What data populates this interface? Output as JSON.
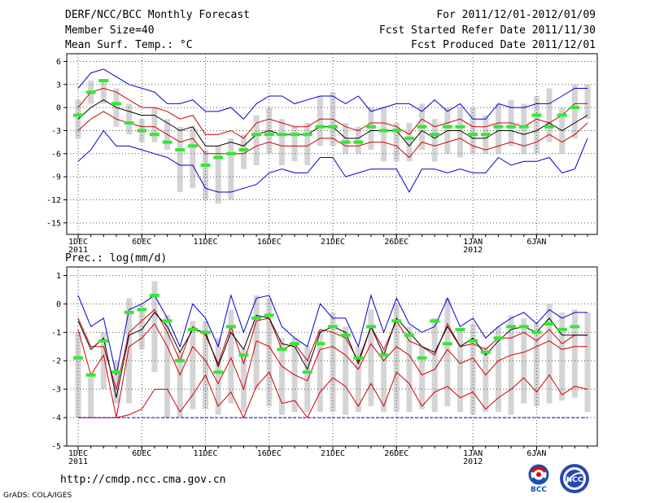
{
  "header": {
    "title": "DERF/NCC/BCC Monthly Forecast",
    "member_size": "Member Size=40",
    "for_range": "For 2011/12/01-2012/01/09",
    "started": "Fcst Started Refer Date 2011/11/30",
    "produced": "Fcst Produced Date 2011/12/01"
  },
  "footer": {
    "url": "http://cmdp.ncc.cma.gov.cn",
    "credit": "GrADS: COLA/IGES",
    "logo_bcc": "BCC",
    "logo_ncc": "NCC"
  },
  "colors": {
    "spread": "#d4d4d6",
    "green": "#33e833",
    "blue": "#0000d0",
    "red": "#d00000",
    "mean": "#000000",
    "grid": "#555555"
  },
  "chart_data": [
    {
      "type": "line",
      "title": "Mean Surf. Temp.: °C",
      "ylabel": "°C",
      "ylim": [
        -16.5,
        7
      ],
      "yticks": [
        6,
        3,
        0,
        -3,
        -6,
        -9,
        -12,
        -15
      ],
      "xtick_labels": [
        {
          "day": 0,
          "label": "1DEC",
          "sub": "2011"
        },
        {
          "day": 5,
          "label": "6DEC",
          "sub": ""
        },
        {
          "day": 10,
          "label": "11DEC",
          "sub": ""
        },
        {
          "day": 15,
          "label": "16DEC",
          "sub": ""
        },
        {
          "day": 20,
          "label": "21DEC",
          "sub": ""
        },
        {
          "day": 25,
          "label": "26DEC",
          "sub": ""
        },
        {
          "day": 31,
          "label": "1JAN",
          "sub": "2012"
        },
        {
          "day": 36,
          "label": "6JAN",
          "sub": ""
        }
      ],
      "x_days": 40,
      "series": [
        {
          "name": "max",
          "color": "blue",
          "values": [
            2.5,
            4.5,
            5,
            4,
            3,
            2.5,
            2,
            0.5,
            0.5,
            1,
            -0.5,
            -0.5,
            0,
            -1.5,
            0.5,
            1.5,
            1.5,
            0.5,
            1,
            1.5,
            1.5,
            0.5,
            1.5,
            -0.5,
            0,
            0.5,
            0.5,
            -0.5,
            1,
            -0.5,
            0.5,
            -1.5,
            -1.5,
            0.5,
            0,
            0,
            0.5,
            0.5,
            1.5,
            2.5,
            2.5
          ]
        },
        {
          "name": "upper",
          "color": "red",
          "values": [
            0,
            2,
            2.5,
            2,
            1,
            0,
            0,
            -0.5,
            -1.5,
            -1,
            -3.5,
            -3.5,
            -3,
            -4,
            -2,
            -1.5,
            -2,
            -2.5,
            -2.5,
            -1.5,
            -1.5,
            -2.5,
            -3,
            -2,
            -2,
            -2.5,
            -3.5,
            -1.5,
            -2.5,
            -2,
            -1.5,
            -2.5,
            -2.5,
            -2,
            -2,
            -2.5,
            -1.5,
            -2,
            -1,
            0.5,
            0.5
          ]
        },
        {
          "name": "mean",
          "color": "mean",
          "values": [
            -1.5,
            0,
            1,
            0,
            -0.5,
            -1,
            -1,
            -2,
            -3,
            -2.5,
            -5,
            -5,
            -4.5,
            -5,
            -3.5,
            -3,
            -3.5,
            -3.5,
            -3.5,
            -2.5,
            -2.5,
            -4,
            -4,
            -3,
            -3,
            -3,
            -5,
            -3,
            -4,
            -3,
            -3,
            -4,
            -4,
            -3,
            -3,
            -3.5,
            -3,
            -2,
            -3,
            -2,
            -1
          ]
        },
        {
          "name": "lower",
          "color": "red",
          "values": [
            -3,
            -1.5,
            -0.5,
            -1.5,
            -2,
            -2.5,
            -2.5,
            -3.5,
            -4.5,
            -4,
            -6,
            -6,
            -6,
            -6,
            -5,
            -4.5,
            -5,
            -5,
            -5,
            -4,
            -4,
            -5,
            -5,
            -4.5,
            -4.5,
            -5,
            -6.5,
            -4.5,
            -5,
            -4.5,
            -4,
            -5,
            -5.5,
            -5,
            -4.5,
            -5,
            -4.5,
            -3.5,
            -4.5,
            -3.5,
            -2
          ]
        },
        {
          "name": "min",
          "color": "blue",
          "values": [
            -7,
            -5.5,
            -3,
            -5,
            -5,
            -5.5,
            -6,
            -6.5,
            -7.5,
            -7.5,
            -10.5,
            -11,
            -11,
            -10.5,
            -10,
            -8.5,
            -8,
            -8.5,
            -8.5,
            -6.5,
            -6.5,
            -9,
            -8.5,
            -8,
            -8,
            -8,
            -11,
            -8,
            -8,
            -8.5,
            -8,
            -8.5,
            -8.5,
            -6.5,
            -7.5,
            -7,
            -7,
            -6.5,
            -8.5,
            -8,
            -4
          ]
        }
      ],
      "spread_bars": [
        [
          -4,
          1
        ],
        [
          0.5,
          3.5
        ],
        [
          0.5,
          3.5
        ],
        [
          -2.5,
          2.5
        ],
        [
          -3.5,
          0.5
        ],
        [
          -4.5,
          -1.5
        ],
        [
          -4.5,
          0
        ],
        [
          -5.5,
          -1.5
        ],
        [
          -11,
          -2.5
        ],
        [
          -10.5,
          -2.5
        ],
        [
          -12,
          -5.5
        ],
        [
          -12.5,
          -5
        ],
        [
          -12,
          -4
        ],
        [
          -8,
          -3.5
        ],
        [
          -7.5,
          -1
        ],
        [
          -6,
          0
        ],
        [
          -7.5,
          -1.5
        ],
        [
          -7,
          -2.5
        ],
        [
          -7.5,
          -2
        ],
        [
          -5,
          1.5
        ],
        [
          -5,
          2
        ],
        [
          -6,
          -2
        ],
        [
          -6,
          -2.5
        ],
        [
          -5.5,
          0
        ],
        [
          -7,
          0
        ],
        [
          -7,
          -2
        ],
        [
          -7,
          -2
        ],
        [
          -5.5,
          0.5
        ],
        [
          -7,
          -1.5
        ],
        [
          -6,
          0
        ],
        [
          -6.5,
          0
        ],
        [
          -6,
          0
        ],
        [
          -6,
          -1
        ],
        [
          -6,
          0.5
        ],
        [
          -5,
          1
        ],
        [
          -6,
          0.5
        ],
        [
          -6,
          1.5
        ],
        [
          -4.5,
          2.5
        ],
        [
          -6,
          0
        ],
        [
          -4,
          3
        ],
        [
          -1.5,
          3
        ]
      ],
      "green_marks": [
        -1,
        2,
        3.5,
        0.5,
        -2,
        -3,
        -3.5,
        -4.5,
        -5.5,
        -5,
        -7.5,
        -6.5,
        -6,
        -5.5,
        -3.5,
        -3.5,
        -3.5,
        -3.5,
        -3.5,
        -2.5,
        -2.5,
        -4.5,
        -4.5,
        -2.5,
        -3,
        -3,
        -4,
        -2.5,
        -3.5,
        -2.5,
        -2.5,
        -3.5,
        -3.5,
        -2.5,
        -2.5,
        -2.5,
        -1,
        -2.5,
        -1,
        0
      ]
    },
    {
      "type": "line",
      "title": "Prec.: log(mm/d)",
      "ylabel": "log(mm/d)",
      "ylim": [
        -5,
        1.3
      ],
      "yticks": [
        1,
        0,
        -1,
        -2,
        -3,
        -4,
        -5
      ],
      "xtick_labels": [
        {
          "day": 0,
          "label": "1DEC",
          "sub": "2011"
        },
        {
          "day": 5,
          "label": "6DEC",
          "sub": ""
        },
        {
          "day": 10,
          "label": "11DEC",
          "sub": ""
        },
        {
          "day": 15,
          "label": "16DEC",
          "sub": ""
        },
        {
          "day": 20,
          "label": "21DEC",
          "sub": ""
        },
        {
          "day": 25,
          "label": "26DEC",
          "sub": ""
        },
        {
          "day": 31,
          "label": "1JAN",
          "sub": "2012"
        },
        {
          "day": 36,
          "label": "6JAN",
          "sub": ""
        }
      ],
      "x_days": 40,
      "series": [
        {
          "name": "max",
          "color": "blue",
          "values": [
            0.3,
            -0.8,
            -0.5,
            -2.5,
            -0.2,
            0,
            0.3,
            -0.5,
            -1.5,
            0,
            -0.5,
            -1.5,
            0.3,
            -1,
            0.2,
            0.3,
            -0.8,
            -1.2,
            -1.5,
            0,
            -0.5,
            -0.5,
            -1.5,
            0.3,
            -1,
            0.2,
            -0.7,
            -1,
            -0.8,
            0.2,
            -0.8,
            -0.5,
            -1.2,
            -0.8,
            -0.5,
            -0.3,
            -0.7,
            -0.2,
            -0.5,
            -0.3,
            -0.3
          ]
        },
        {
          "name": "upper",
          "color": "red",
          "values": [
            -0.5,
            -1.5,
            -1.5,
            -3,
            -1,
            -0.6,
            -0.2,
            -1,
            -2,
            -0.8,
            -1.1,
            -2.1,
            -0.8,
            -2.1,
            -0.6,
            -0.5,
            -1.6,
            -1.4,
            -2,
            -0.9,
            -1,
            -1.2,
            -2,
            -0.8,
            -1.6,
            -0.6,
            -1.3,
            -1.5,
            -1.8,
            -0.7,
            -1.5,
            -1.4,
            -1.6,
            -1.2,
            -1.2,
            -1,
            -1.3,
            -0.9,
            -1.4,
            -1.1,
            -1.1
          ]
        },
        {
          "name": "mean",
          "color": "mean",
          "values": [
            -0.6,
            -1.6,
            -1.2,
            -3.3,
            -1.1,
            -0.9,
            -0.3,
            -0.8,
            -1.7,
            -0.9,
            -1,
            -2.2,
            -1,
            -1.6,
            -0.4,
            -0.5,
            -1.4,
            -1.5,
            -2.3,
            -1,
            -0.8,
            -1,
            -2.1,
            -0.8,
            -1.8,
            -0.5,
            -1,
            -1.5,
            -1.7,
            -0.8,
            -1.5,
            -1.2,
            -1.8,
            -1.3,
            -0.9,
            -0.8,
            -1,
            -0.5,
            -1.1,
            -1.1,
            -1.1
          ]
        },
        {
          "name": "lower",
          "color": "red",
          "values": [
            -0.9,
            -2.5,
            -1.8,
            -4,
            -1.5,
            -1.2,
            -0.7,
            -1.5,
            -2.5,
            -1.5,
            -2,
            -2.8,
            -1.9,
            -3,
            -1.3,
            -1.5,
            -2.2,
            -2.5,
            -2.7,
            -1.6,
            -1.5,
            -1.8,
            -2.3,
            -1.4,
            -2,
            -1.5,
            -1.8,
            -2.5,
            -2.3,
            -1.6,
            -2.1,
            -1.9,
            -2.5,
            -2,
            -1.8,
            -1.7,
            -1.5,
            -1.3,
            -1.6,
            -1.5,
            -1.5
          ]
        },
        {
          "name": "lowest",
          "color": "red",
          "values": [
            -4,
            -4,
            -4,
            -4,
            -3.9,
            -3.7,
            -3,
            -3,
            -3.8,
            -3.2,
            -2.5,
            -3.6,
            -3.1,
            -4,
            -2.9,
            -2.4,
            -3.5,
            -3.4,
            -4,
            -3.1,
            -2.6,
            -2.9,
            -3.6,
            -2.8,
            -3.6,
            -2.4,
            -2.8,
            -3.6,
            -3.1,
            -2.9,
            -3.3,
            -3.1,
            -3.7,
            -3.3,
            -3,
            -2.6,
            -3.1,
            -2.5,
            -3.2,
            -2.9,
            -3
          ]
        },
        {
          "name": "min",
          "color": "blue",
          "dashed": true,
          "values": [
            -4,
            -4,
            -4,
            -4,
            -4,
            -4,
            -4,
            -4,
            -4,
            -4,
            -4,
            -4,
            -4,
            -4,
            -4,
            -4,
            -4,
            -4,
            -4,
            -4,
            -4,
            -4,
            -4,
            -4,
            -4,
            -4,
            -4,
            -4,
            -4,
            -4,
            -4,
            -4,
            -4,
            -4,
            -4,
            -4,
            -4,
            -4,
            -4,
            -4,
            -4
          ]
        }
      ],
      "spread_bars": [
        [
          -4,
          -1
        ],
        [
          -4,
          -2.5
        ],
        [
          -3,
          -1
        ],
        [
          -3.5,
          -2
        ],
        [
          -3.5,
          0.2
        ],
        [
          -1.6,
          0
        ],
        [
          -2.4,
          0.8
        ],
        [
          -4,
          -0.4
        ],
        [
          -4,
          -1.7
        ],
        [
          -3.7,
          -0.6
        ],
        [
          -3.7,
          -0.6
        ],
        [
          -3.9,
          -1.2
        ],
        [
          -3.5,
          -0.2
        ],
        [
          -3.8,
          -1.6
        ],
        [
          -3,
          0.3
        ],
        [
          -3.6,
          0.2
        ],
        [
          -3.9,
          -1.2
        ],
        [
          -3.8,
          -1.2
        ],
        [
          -3.8,
          -1.5
        ],
        [
          -3.8,
          -0.9
        ],
        [
          -3.8,
          -0.3
        ],
        [
          -3.9,
          -0.8
        ],
        [
          -3.8,
          -1.5
        ],
        [
          -3.6,
          -0.2
        ],
        [
          -3.8,
          -1.6
        ],
        [
          -3.8,
          0
        ],
        [
          -3.8,
          -0.8
        ],
        [
          -3.7,
          -1.5
        ],
        [
          -3.8,
          -0.5
        ],
        [
          -3.6,
          0.2
        ],
        [
          -3.8,
          -0.9
        ],
        [
          -3.9,
          -0.7
        ],
        [
          -3.8,
          -1.5
        ],
        [
          -3.8,
          -0.8
        ],
        [
          -3.9,
          -0.4
        ],
        [
          -3.5,
          -0.5
        ],
        [
          -3.6,
          -0.7
        ],
        [
          -3.5,
          0
        ],
        [
          -3.4,
          -0.3
        ],
        [
          -3.3,
          -0.2
        ],
        [
          -3.8,
          -0.3
        ]
      ],
      "green_marks": [
        -1.9,
        -2.5,
        -1.3,
        -2.4,
        -0.3,
        -0.2,
        0.3,
        -0.6,
        -2,
        -0.9,
        -1,
        -2.4,
        -0.8,
        -1.8,
        -0.5,
        -0.4,
        -1.6,
        -1.4,
        -2.4,
        -1.4,
        -0.8,
        -1.1,
        -1.9,
        -0.8,
        -1.8,
        -0.6,
        -1.1,
        -1.9,
        -0.6,
        -1.4,
        -0.9,
        -1.3,
        -1.7,
        -1.2,
        -0.8,
        -0.8,
        -1,
        -0.7,
        -0.9,
        -0.8
      ]
    }
  ]
}
